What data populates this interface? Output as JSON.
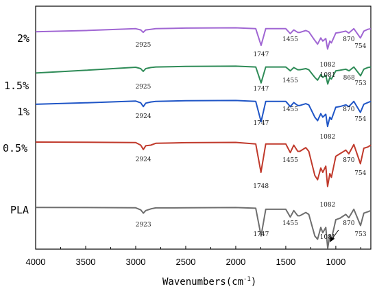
{
  "chart_data": {
    "type": "line",
    "title": "",
    "xlabel": "Wavenumbers(cm",
    "xlabel_sup": "-1",
    "xlabel_close": ")",
    "ylabel": "",
    "xlim": [
      4000,
      650
    ],
    "x_reversed": true,
    "grid": false,
    "legend": "none",
    "x_ticks": [
      4000,
      3500,
      3000,
      2500,
      2000,
      1500,
      1000
    ],
    "series": [
      {
        "name": "PLA",
        "color": "#6e6e6e",
        "baseline": 0.1,
        "points": [
          [
            4000,
            0.12
          ],
          [
            3500,
            0.14
          ],
          [
            3000,
            0.18
          ],
          [
            2950,
            0.5
          ],
          [
            2923,
            1.0
          ],
          [
            2900,
            0.6
          ],
          [
            2850,
            0.35
          ],
          [
            2800,
            0.2
          ],
          [
            2500,
            0.18
          ],
          [
            2000,
            0.14
          ],
          [
            1800,
            0.25
          ],
          [
            1747,
            4.5
          ],
          [
            1700,
            0.4
          ],
          [
            1500,
            0.4
          ],
          [
            1455,
            1.6
          ],
          [
            1420,
            0.6
          ],
          [
            1380,
            1.4
          ],
          [
            1360,
            1.4
          ],
          [
            1300,
            0.9
          ],
          [
            1270,
            1.2
          ],
          [
            1210,
            4.5
          ],
          [
            1182,
            5.0
          ],
          [
            1150,
            3.2
          ],
          [
            1130,
            4.0
          ],
          [
            1100,
            3.2
          ],
          [
            1081,
            6.4
          ],
          [
            1060,
            4.3
          ],
          [
            1044,
            5.0
          ],
          [
            1000,
            2.0
          ],
          [
            960,
            1.8
          ],
          [
            900,
            1.2
          ],
          [
            870,
            1.7
          ],
          [
            820,
            0.4
          ],
          [
            753,
            2.9
          ],
          [
            720,
            1.0
          ],
          [
            680,
            0.8
          ],
          [
            650,
            0.6
          ]
        ],
        "labels": [
          {
            "x": 2923,
            "text": "2923"
          },
          {
            "x": 1747,
            "text": "1747"
          },
          {
            "x": 1455,
            "text": "1455"
          },
          {
            "x": 1081,
            "text": "1081"
          },
          {
            "x": 870,
            "text": "870"
          },
          {
            "x": 753,
            "text": "753"
          }
        ]
      },
      {
        "name": "0.5%",
        "color": "#c0392b",
        "baseline": 0.1,
        "points": [
          [
            4000,
            0.1
          ],
          [
            3500,
            0.12
          ],
          [
            3000,
            0.18
          ],
          [
            2950,
            0.6
          ],
          [
            2924,
            1.3
          ],
          [
            2900,
            0.7
          ],
          [
            2850,
            0.6
          ],
          [
            2800,
            0.3
          ],
          [
            2500,
            0.2
          ],
          [
            2000,
            0.16
          ],
          [
            1800,
            0.4
          ],
          [
            1748,
            5.0
          ],
          [
            1700,
            0.4
          ],
          [
            1500,
            0.4
          ],
          [
            1455,
            1.8
          ],
          [
            1420,
            0.6
          ],
          [
            1380,
            1.6
          ],
          [
            1360,
            1.6
          ],
          [
            1300,
            1.0
          ],
          [
            1270,
            1.6
          ],
          [
            1210,
            5.5
          ],
          [
            1182,
            6.2
          ],
          [
            1150,
            4.3
          ],
          [
            1130,
            5.0
          ],
          [
            1100,
            4.0
          ],
          [
            1082,
            7.3
          ],
          [
            1060,
            5.2
          ],
          [
            1044,
            5.8
          ],
          [
            1000,
            2.4
          ],
          [
            960,
            2.0
          ],
          [
            900,
            1.4
          ],
          [
            870,
            2.0
          ],
          [
            820,
            0.5
          ],
          [
            754,
            3.6
          ],
          [
            720,
            1.1
          ],
          [
            680,
            0.9
          ],
          [
            650,
            0.6
          ]
        ],
        "labels": [
          {
            "x": 2924,
            "text": "2924"
          },
          {
            "x": 1748,
            "text": "1748"
          },
          {
            "x": 1455,
            "text": "1455"
          },
          {
            "x": 1082,
            "text": "1082"
          },
          {
            "x": 870,
            "text": "870"
          },
          {
            "x": 754,
            "text": "754"
          }
        ]
      },
      {
        "name": "1%",
        "color": "#1f55c6",
        "baseline": 0.1,
        "points": [
          [
            4000,
            0.8
          ],
          [
            3500,
            0.55
          ],
          [
            3000,
            0.25
          ],
          [
            2950,
            0.55
          ],
          [
            2924,
            1.2
          ],
          [
            2900,
            0.6
          ],
          [
            2850,
            0.4
          ],
          [
            2800,
            0.3
          ],
          [
            2500,
            0.2
          ],
          [
            2000,
            0.15
          ],
          [
            1800,
            0.3
          ],
          [
            1747,
            3.8
          ],
          [
            1700,
            0.3
          ],
          [
            1500,
            0.3
          ],
          [
            1455,
            1.2
          ],
          [
            1420,
            0.5
          ],
          [
            1380,
            1.0
          ],
          [
            1360,
            1.0
          ],
          [
            1300,
            0.7
          ],
          [
            1270,
            0.9
          ],
          [
            1210,
            3.0
          ],
          [
            1182,
            3.6
          ],
          [
            1150,
            2.4
          ],
          [
            1130,
            3.0
          ],
          [
            1100,
            2.5
          ],
          [
            1082,
            4.6
          ],
          [
            1060,
            3.0
          ],
          [
            1044,
            3.4
          ],
          [
            1000,
            1.3
          ],
          [
            960,
            1.2
          ],
          [
            900,
            0.9
          ],
          [
            870,
            1.2
          ],
          [
            820,
            0.3
          ],
          [
            754,
            2.2
          ],
          [
            720,
            0.8
          ],
          [
            680,
            0.5
          ],
          [
            650,
            0.3
          ]
        ],
        "labels": [
          {
            "x": 2924,
            "text": "2924"
          },
          {
            "x": 1747,
            "text": "1747"
          },
          {
            "x": 1455,
            "text": "1455"
          },
          {
            "x": 1082,
            "text": "1082"
          },
          {
            "x": 870,
            "text": "870"
          },
          {
            "x": 754,
            "text": "754"
          }
        ]
      },
      {
        "name": "1.5%",
        "color": "#2e8b57",
        "baseline": 0.1,
        "points": [
          [
            4000,
            1.4
          ],
          [
            3500,
            0.9
          ],
          [
            3000,
            0.35
          ],
          [
            2950,
            0.6
          ],
          [
            2925,
            1.1
          ],
          [
            2900,
            0.6
          ],
          [
            2850,
            0.4
          ],
          [
            2800,
            0.3
          ],
          [
            2500,
            0.2
          ],
          [
            2000,
            0.15
          ],
          [
            1800,
            0.3
          ],
          [
            1747,
            3.2
          ],
          [
            1700,
            0.3
          ],
          [
            1500,
            0.3
          ],
          [
            1455,
            1.0
          ],
          [
            1420,
            0.4
          ],
          [
            1380,
            0.8
          ],
          [
            1360,
            0.8
          ],
          [
            1300,
            0.6
          ],
          [
            1270,
            0.8
          ],
          [
            1210,
            2.2
          ],
          [
            1182,
            2.7
          ],
          [
            1150,
            1.7
          ],
          [
            1130,
            2.2
          ],
          [
            1100,
            1.8
          ],
          [
            1081,
            3.4
          ],
          [
            1060,
            2.2
          ],
          [
            1044,
            2.5
          ],
          [
            1000,
            1.0
          ],
          [
            960,
            0.9
          ],
          [
            900,
            0.7
          ],
          [
            868,
            1.0
          ],
          [
            820,
            0.3
          ],
          [
            753,
            1.9
          ],
          [
            720,
            0.7
          ],
          [
            680,
            0.4
          ],
          [
            650,
            0.3
          ]
        ],
        "labels": [
          {
            "x": 2925,
            "text": "2925"
          },
          {
            "x": 1747,
            "text": "1747"
          },
          {
            "x": 1455,
            "text": "1455"
          },
          {
            "x": 1081,
            "text": "1081"
          },
          {
            "x": 868,
            "text": "868"
          },
          {
            "x": 753,
            "text": "753"
          }
        ]
      },
      {
        "name": "2%",
        "color": "#a066d3",
        "baseline": 0.1,
        "points": [
          [
            4000,
            0.8
          ],
          [
            3500,
            0.6
          ],
          [
            3000,
            0.3
          ],
          [
            2950,
            0.5
          ],
          [
            2925,
            0.9
          ],
          [
            2900,
            0.5
          ],
          [
            2850,
            0.4
          ],
          [
            2800,
            0.3
          ],
          [
            2500,
            0.2
          ],
          [
            2000,
            0.15
          ],
          [
            1800,
            0.3
          ],
          [
            1747,
            3.0
          ],
          [
            1700,
            0.3
          ],
          [
            1500,
            0.3
          ],
          [
            1455,
            1.1
          ],
          [
            1420,
            0.5
          ],
          [
            1380,
            0.9
          ],
          [
            1360,
            0.9
          ],
          [
            1300,
            0.6
          ],
          [
            1270,
            0.8
          ],
          [
            1210,
            2.2
          ],
          [
            1182,
            2.8
          ],
          [
            1150,
            1.8
          ],
          [
            1130,
            2.3
          ],
          [
            1100,
            1.9
          ],
          [
            1082,
            3.6
          ],
          [
            1060,
            2.3
          ],
          [
            1044,
            2.6
          ],
          [
            1000,
            1.0
          ],
          [
            960,
            0.9
          ],
          [
            900,
            0.7
          ],
          [
            870,
            1.0
          ],
          [
            820,
            0.3
          ],
          [
            754,
            1.8
          ],
          [
            720,
            0.7
          ],
          [
            680,
            0.4
          ],
          [
            650,
            0.3
          ]
        ],
        "labels": [
          {
            "x": 2925,
            "text": "2925"
          },
          {
            "x": 1747,
            "text": "1747"
          },
          {
            "x": 1455,
            "text": "1455"
          },
          {
            "x": 1082,
            "text": "1082"
          },
          {
            "x": 870,
            "text": "870"
          },
          {
            "x": 754,
            "text": "754"
          }
        ]
      }
    ]
  }
}
